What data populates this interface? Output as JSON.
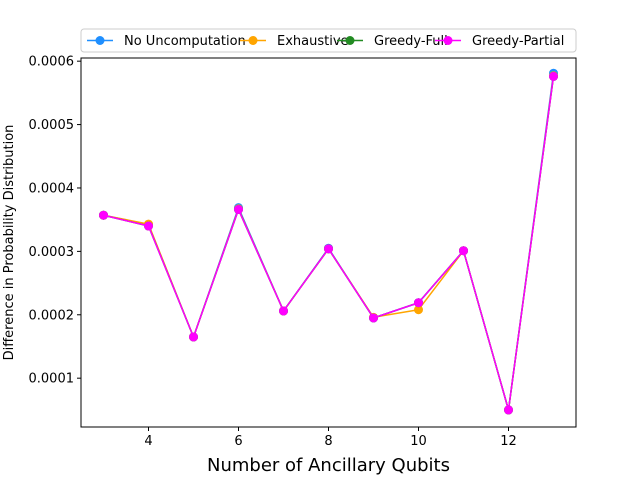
{
  "chart_data": {
    "type": "line",
    "title": "",
    "xlabel": "Number of Ancillary Qubits",
    "ylabel": "Difference in Probability Distribution",
    "xlim": [
      2.5,
      13.5
    ],
    "ylim": [
      2.3e-05,
      0.000605
    ],
    "xticks": [
      4,
      6,
      8,
      10,
      12
    ],
    "xtick_labels": [
      "4",
      "6",
      "8",
      "10",
      "12"
    ],
    "yticks": [
      0.0001,
      0.0002,
      0.0003,
      0.0004,
      0.0005,
      0.0006
    ],
    "ytick_labels": [
      "0.0001",
      "0.0002",
      "0.0003",
      "0.0004",
      "0.0005",
      "0.0006"
    ],
    "grid": false,
    "legend_position": "top",
    "x": [
      3,
      4,
      5,
      6,
      7,
      8,
      9,
      10,
      11,
      12,
      13
    ],
    "series": [
      {
        "name": "No Uncomputation",
        "color": "#1f8fff",
        "marker": "circle",
        "values": [
          0.000357,
          0.000342,
          0.000165,
          0.000369,
          0.000206,
          0.000305,
          0.000195,
          0.000219,
          0.000301,
          5e-05,
          0.000581
        ]
      },
      {
        "name": "Exhaustive",
        "color": "#ffa500",
        "marker": "circle",
        "values": [
          0.000357,
          0.000343,
          0.000165,
          0.000367,
          0.000206,
          0.000304,
          0.000196,
          0.000208,
          0.000301,
          5e-05,
          0.000577
        ]
      },
      {
        "name": "Greedy-Full",
        "color": "#228b22",
        "marker": "circle",
        "values": [
          0.000357,
          0.00034,
          0.000165,
          0.000366,
          0.000206,
          0.000304,
          0.000195,
          0.000219,
          0.000301,
          5e-05,
          0.000576
        ]
      },
      {
        "name": "Greedy-Partial",
        "color": "#ff00ff",
        "marker": "circle",
        "values": [
          0.000357,
          0.00034,
          0.000165,
          0.000366,
          0.000206,
          0.000304,
          0.000195,
          0.000219,
          0.000301,
          5e-05,
          0.000576
        ]
      }
    ]
  }
}
